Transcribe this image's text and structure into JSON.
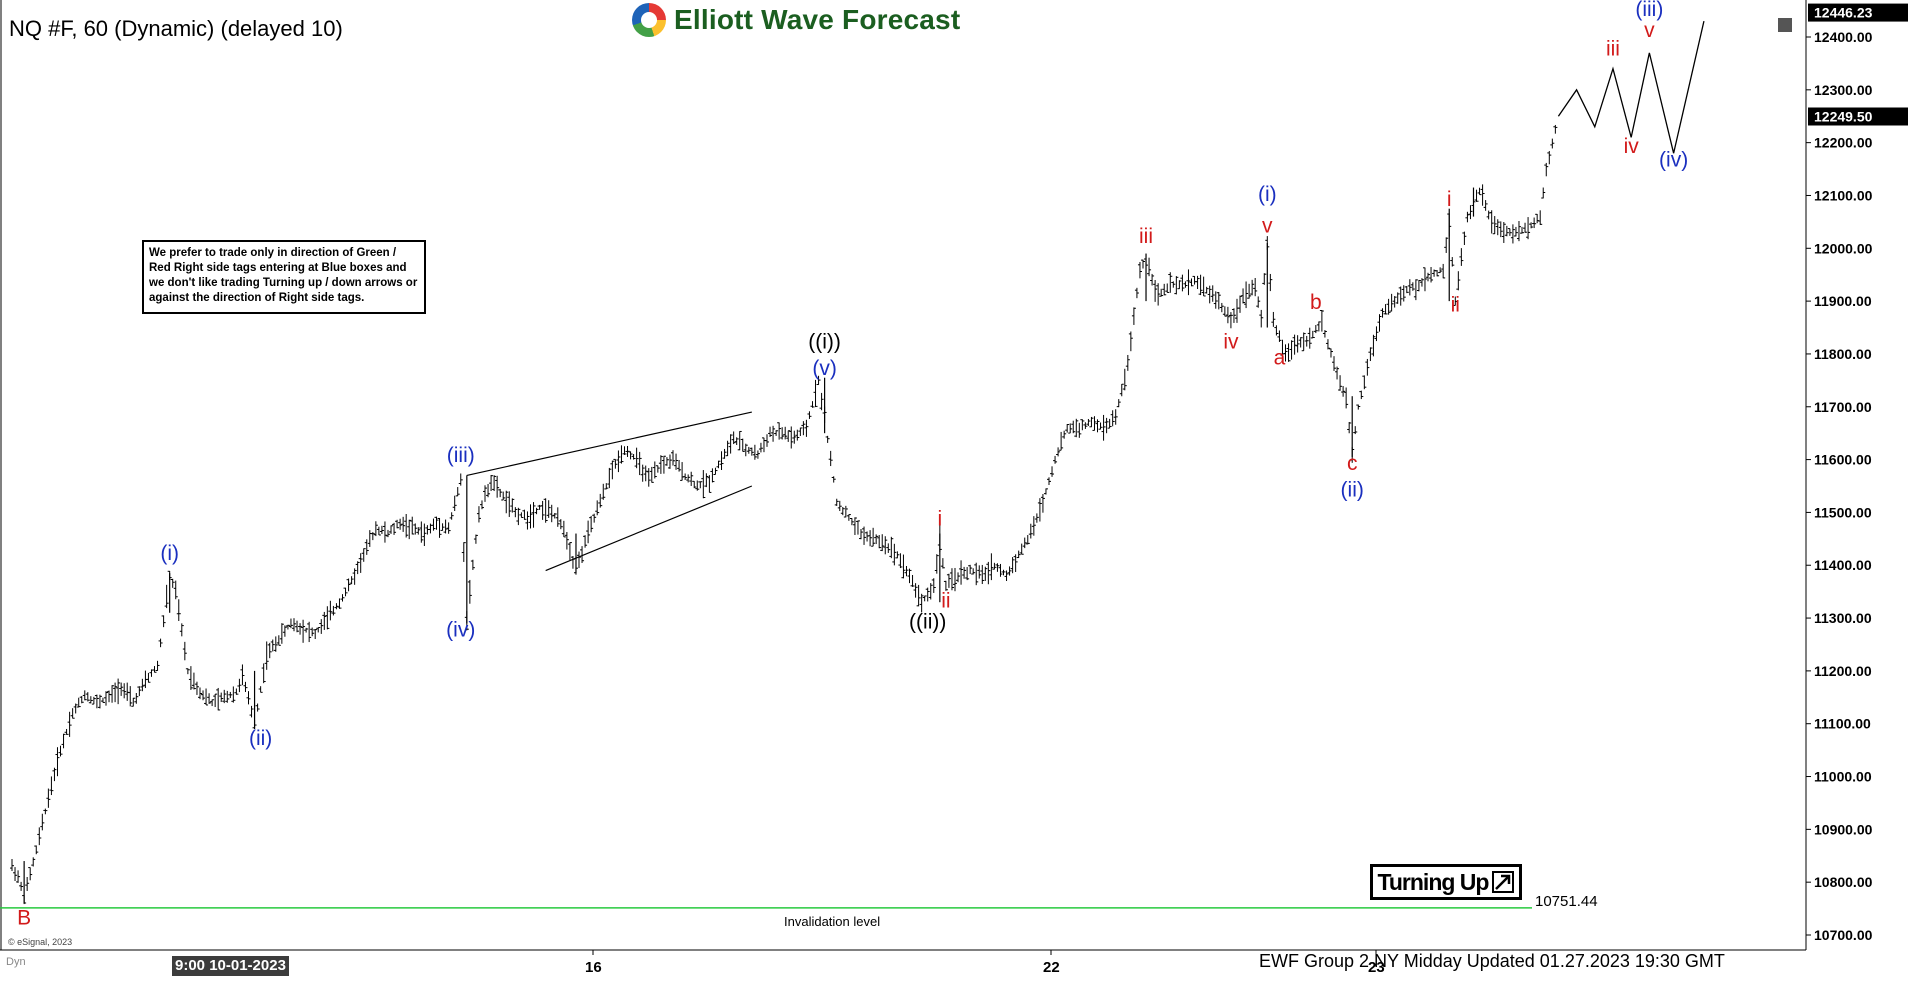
{
  "header": {
    "title": "NQ #F, 60 (Dynamic) (delayed 10)",
    "logo_text": "Elliott Wave Forecast"
  },
  "note_box": {
    "text": "We prefer to trade only in direction of Green / Red Right side tags entering at Blue boxes and we don't like trading Turning up / down arrows or against the direction of Right side tags."
  },
  "turning_badge": {
    "label": "Turning Up"
  },
  "footer": {
    "text": "EWF Group 2 NY Midday Updated 01.27.2023 19:30 GMT",
    "copyright": "© eSignal, 2023",
    "dyn_label": "Dyn",
    "cursor_date": "9:00 10-01-2023"
  },
  "colors": {
    "candle": "#000000",
    "blue_label": "#1a2fbf",
    "red_label": "#d21a1a",
    "black_label": "#000000",
    "invalidation_line": "#27c93f",
    "price_tag_bg": "#000000"
  },
  "chart_data": {
    "type": "line",
    "instrument": "NQ #F",
    "timeframe": "60",
    "ylim": [
      10670,
      12470
    ],
    "y_ticks": [
      10700,
      10800,
      10900,
      11000,
      11100,
      11200,
      11300,
      11400,
      11500,
      11600,
      11700,
      11800,
      11900,
      12000,
      12100,
      12200,
      12300,
      12400
    ],
    "x_tick_labels": [
      "16",
      "22",
      "23"
    ],
    "price_tags": [
      {
        "label": "12446.23",
        "value": 12446.23
      },
      {
        "label": "12249.50",
        "value": 12249.5
      }
    ],
    "invalidation": {
      "label": "Invalidation level",
      "value": 10751.44,
      "value_label": "10751.44"
    },
    "price_path": [
      [
        0,
        10830
      ],
      [
        1,
        10810
      ],
      [
        2,
        10770
      ],
      [
        4,
        10860
      ],
      [
        6,
        10960
      ],
      [
        8,
        11050
      ],
      [
        10,
        11120
      ],
      [
        12,
        11155
      ],
      [
        14,
        11140
      ],
      [
        16,
        11150
      ],
      [
        18,
        11170
      ],
      [
        20,
        11140
      ],
      [
        22,
        11180
      ],
      [
        24,
        11210
      ],
      [
        26,
        11380
      ],
      [
        27,
        11350
      ],
      [
        29,
        11200
      ],
      [
        31,
        11160
      ],
      [
        33,
        11140
      ],
      [
        35,
        11150
      ],
      [
        37,
        11160
      ],
      [
        38,
        11190
      ],
      [
        40,
        11100
      ],
      [
        42,
        11230
      ],
      [
        44,
        11260
      ],
      [
        46,
        11290
      ],
      [
        48,
        11280
      ],
      [
        50,
        11270
      ],
      [
        52,
        11300
      ],
      [
        54,
        11330
      ],
      [
        56,
        11370
      ],
      [
        58,
        11420
      ],
      [
        60,
        11470
      ],
      [
        62,
        11460
      ],
      [
        64,
        11480
      ],
      [
        66,
        11470
      ],
      [
        68,
        11460
      ],
      [
        70,
        11480
      ],
      [
        72,
        11470
      ],
      [
        74,
        11560
      ],
      [
        75,
        11300
      ],
      [
        77,
        11500
      ],
      [
        79,
        11560
      ],
      [
        81,
        11530
      ],
      [
        83,
        11500
      ],
      [
        85,
        11490
      ],
      [
        87,
        11510
      ],
      [
        89,
        11500
      ],
      [
        91,
        11470
      ],
      [
        93,
        11390
      ],
      [
        95,
        11460
      ],
      [
        97,
        11520
      ],
      [
        99,
        11580
      ],
      [
        101,
        11620
      ],
      [
        103,
        11600
      ],
      [
        105,
        11560
      ],
      [
        107,
        11590
      ],
      [
        109,
        11600
      ],
      [
        111,
        11570
      ],
      [
        113,
        11550
      ],
      [
        115,
        11560
      ],
      [
        117,
        11600
      ],
      [
        119,
        11640
      ],
      [
        121,
        11620
      ],
      [
        123,
        11610
      ],
      [
        125,
        11650
      ],
      [
        127,
        11650
      ],
      [
        129,
        11640
      ],
      [
        131,
        11660
      ],
      [
        133,
        11750
      ],
      [
        134,
        11680
      ],
      [
        136,
        11520
      ],
      [
        138,
        11490
      ],
      [
        140,
        11460
      ],
      [
        142,
        11450
      ],
      [
        144,
        11440
      ],
      [
        146,
        11420
      ],
      [
        148,
        11380
      ],
      [
        150,
        11330
      ],
      [
        152,
        11360
      ],
      [
        153,
        11450
      ],
      [
        154,
        11360
      ],
      [
        156,
        11380
      ],
      [
        158,
        11390
      ],
      [
        160,
        11380
      ],
      [
        162,
        11400
      ],
      [
        164,
        11380
      ],
      [
        166,
        11420
      ],
      [
        168,
        11460
      ],
      [
        170,
        11520
      ],
      [
        172,
        11600
      ],
      [
        174,
        11660
      ],
      [
        176,
        11660
      ],
      [
        178,
        11670
      ],
      [
        180,
        11660
      ],
      [
        182,
        11680
      ],
      [
        184,
        11780
      ],
      [
        186,
        11960
      ],
      [
        187,
        11980
      ],
      [
        189,
        11910
      ],
      [
        191,
        11930
      ],
      [
        193,
        11930
      ],
      [
        195,
        11940
      ],
      [
        197,
        11920
      ],
      [
        199,
        11900
      ],
      [
        201,
        11860
      ],
      [
        203,
        11910
      ],
      [
        205,
        11930
      ],
      [
        206,
        11870
      ],
      [
        207,
        12010
      ],
      [
        208,
        11860
      ],
      [
        210,
        11800
      ],
      [
        212,
        11820
      ],
      [
        214,
        11830
      ],
      [
        216,
        11860
      ],
      [
        218,
        11780
      ],
      [
        220,
        11710
      ],
      [
        221,
        11610
      ],
      [
        222,
        11700
      ],
      [
        224,
        11800
      ],
      [
        226,
        11880
      ],
      [
        228,
        11900
      ],
      [
        230,
        11920
      ],
      [
        232,
        11930
      ],
      [
        234,
        11950
      ],
      [
        236,
        11960
      ],
      [
        237,
        12050
      ],
      [
        238,
        11900
      ],
      [
        240,
        12060
      ],
      [
        242,
        12110
      ],
      [
        244,
        12050
      ],
      [
        246,
        12030
      ],
      [
        248,
        12030
      ],
      [
        250,
        12040
      ],
      [
        252,
        12060
      ],
      [
        253,
        12150
      ],
      [
        255,
        12250
      ]
    ],
    "projection_path": [
      [
        255,
        12250
      ],
      [
        258,
        12300
      ],
      [
        261,
        12230
      ],
      [
        264,
        12340
      ],
      [
        267,
        12210
      ],
      [
        270,
        12370
      ],
      [
        274,
        12180
      ],
      [
        279,
        12430
      ]
    ],
    "triangle_lines": [
      [
        [
          75,
          11570
        ],
        [
          122,
          11690
        ]
      ],
      [
        [
          88,
          11390
        ],
        [
          122,
          11550
        ]
      ]
    ],
    "wave_labels": [
      {
        "text": "B",
        "x": 2,
        "price": 10720,
        "color": "red"
      },
      {
        "text": "(i)",
        "x": 26,
        "price": 11410,
        "color": "blue"
      },
      {
        "text": "(ii)",
        "x": 41,
        "price": 11060,
        "color": "blue"
      },
      {
        "text": "(iii)",
        "x": 74,
        "price": 11595,
        "color": "blue"
      },
      {
        "text": "(iv)",
        "x": 74,
        "price": 11265,
        "color": "blue"
      },
      {
        "text": "((i))",
        "x": 134,
        "price": 11810,
        "color": "black"
      },
      {
        "text": "(v)",
        "x": 134,
        "price": 11760,
        "color": "blue"
      },
      {
        "text": "((ii))",
        "x": 151,
        "price": 11280,
        "color": "black"
      },
      {
        "text": "i",
        "x": 153,
        "price": 11475,
        "color": "red"
      },
      {
        "text": "ii",
        "x": 154,
        "price": 11320,
        "color": "red"
      },
      {
        "text": "iii",
        "x": 187,
        "price": 12010,
        "color": "red"
      },
      {
        "text": "iv",
        "x": 201,
        "price": 11810,
        "color": "red"
      },
      {
        "text": "(i)",
        "x": 207,
        "price": 12090,
        "color": "blue"
      },
      {
        "text": "v",
        "x": 207,
        "price": 12030,
        "color": "red"
      },
      {
        "text": "a",
        "x": 209,
        "price": 11780,
        "color": "red"
      },
      {
        "text": "b",
        "x": 215,
        "price": 11885,
        "color": "red"
      },
      {
        "text": "c",
        "x": 221,
        "price": 11580,
        "color": "red"
      },
      {
        "text": "(ii)",
        "x": 221,
        "price": 11530,
        "color": "blue"
      },
      {
        "text": "i",
        "x": 237,
        "price": 12080,
        "color": "red"
      },
      {
        "text": "ii",
        "x": 238,
        "price": 11880,
        "color": "red"
      },
      {
        "text": "iii",
        "x": 264,
        "price": 12365,
        "color": "red"
      },
      {
        "text": "iv",
        "x": 267,
        "price": 12180,
        "color": "red"
      },
      {
        "text": "(iii)",
        "x": 270,
        "price": 12440,
        "color": "blue"
      },
      {
        "text": "v",
        "x": 270,
        "price": 12400,
        "color": "red"
      },
      {
        "text": "(iv)",
        "x": 274,
        "price": 12155,
        "color": "blue"
      }
    ]
  }
}
